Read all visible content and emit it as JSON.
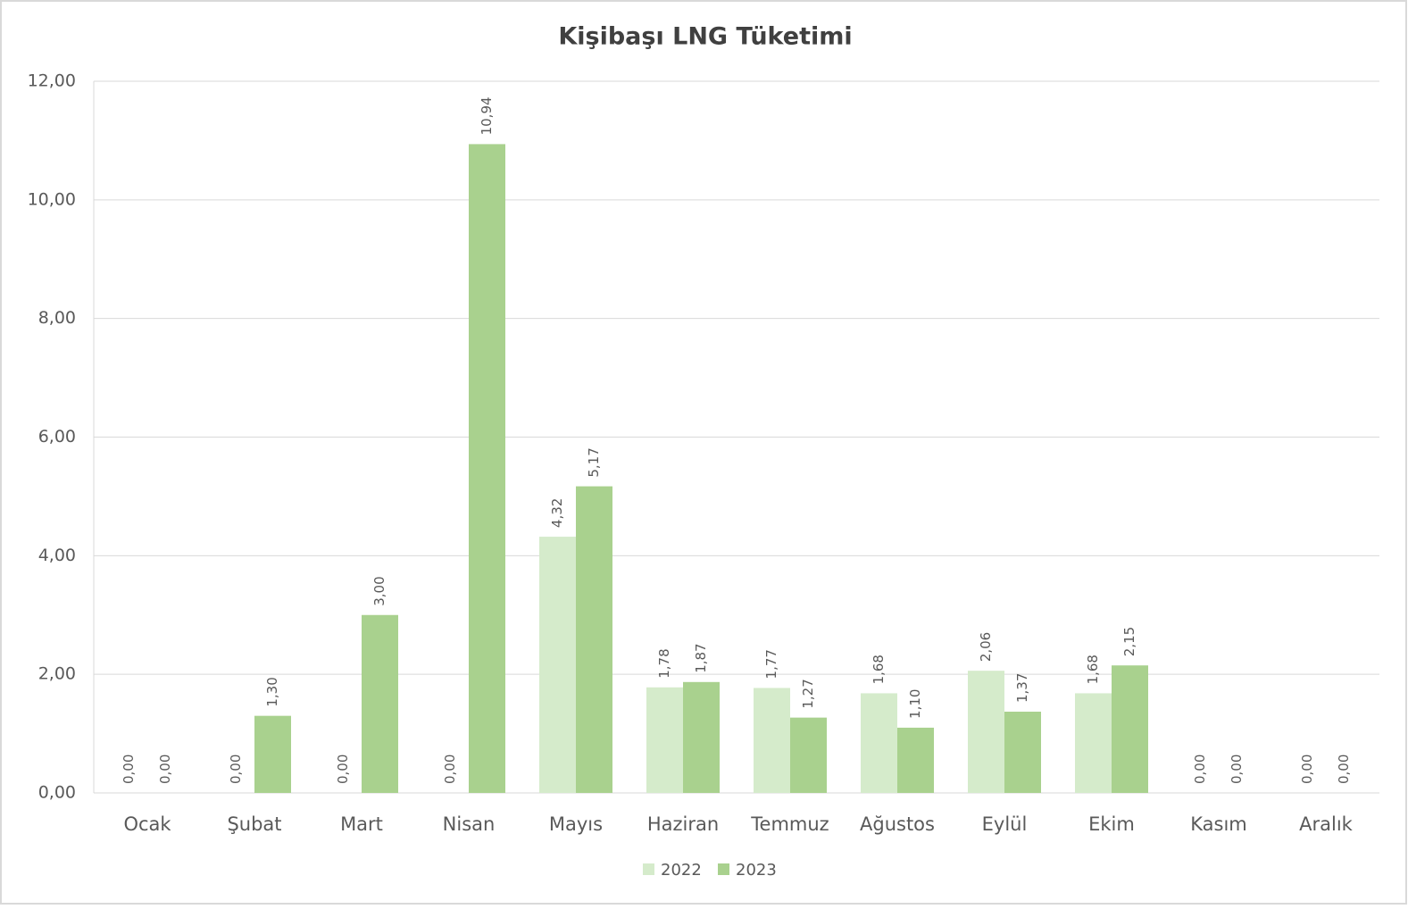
{
  "chart_data": {
    "type": "bar",
    "title": "Kişibaşı LNG Tüketimi",
    "categories": [
      "Ocak",
      "Şubat",
      "Mart",
      "Nisan",
      "Mayıs",
      "Haziran",
      "Temmuz",
      "Ağustos",
      "Eylül",
      "Ekim",
      "Kasım",
      "Aralık"
    ],
    "series": [
      {
        "name": "2022",
        "color": "#d5ebcb",
        "values": [
          0,
          0,
          0,
          0,
          4.32,
          1.78,
          1.77,
          1.68,
          2.06,
          1.68,
          0,
          0
        ],
        "value_labels": [
          "0,00",
          "0,00",
          "0,00",
          "0,00",
          "4,32",
          "1,78",
          "1,77",
          "1,68",
          "2,06",
          "1,68",
          "0,00",
          "0,00"
        ]
      },
      {
        "name": "2023",
        "color": "#a9d18e",
        "values": [
          0,
          1.3,
          3.0,
          10.94,
          5.17,
          1.87,
          1.27,
          1.1,
          1.37,
          2.15,
          0,
          0
        ],
        "value_labels": [
          "0,00",
          "1,30",
          "3,00",
          "10,94",
          "5,17",
          "1,87",
          "1,27",
          "1,10",
          "1,37",
          "2,15",
          "0,00",
          "0,00"
        ]
      }
    ],
    "ylim": [
      0,
      12
    ],
    "yticks": [
      {
        "value": 0,
        "label": "0,00"
      },
      {
        "value": 2,
        "label": "2,00"
      },
      {
        "value": 4,
        "label": "4,00"
      },
      {
        "value": 6,
        "label": "6,00"
      },
      {
        "value": 8,
        "label": "8,00"
      },
      {
        "value": 10,
        "label": "10,00"
      },
      {
        "value": 12,
        "label": "12,00"
      }
    ],
    "grid": true,
    "legend": "bottom"
  }
}
